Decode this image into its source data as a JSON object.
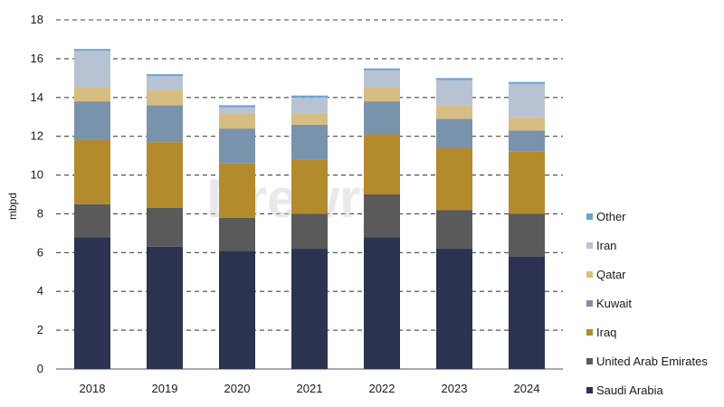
{
  "watermark": "Drewry",
  "chart_data": {
    "type": "bar",
    "stacked": true,
    "title": "",
    "xlabel": "",
    "ylabel": "mbpd",
    "ylim": [
      0,
      18
    ],
    "yticks": [
      0,
      2,
      4,
      6,
      8,
      10,
      12,
      14,
      16,
      18
    ],
    "grid": "dashed horizontal",
    "legend": "right",
    "categories": [
      "2018",
      "2019",
      "2020",
      "2021",
      "2022",
      "2023",
      "2024"
    ],
    "series": [
      {
        "name": "Saudi Arabia",
        "color": "#2b3351",
        "values": [
          6.8,
          6.3,
          6.1,
          6.2,
          6.8,
          6.2,
          5.8
        ]
      },
      {
        "name": "United Arab Emirates",
        "color": "#5a5a5a",
        "values": [
          1.7,
          2.0,
          1.7,
          1.8,
          2.2,
          2.0,
          2.2
        ]
      },
      {
        "name": "Iraq",
        "color": "#b38a2c",
        "values": [
          3.3,
          3.4,
          2.8,
          2.8,
          3.1,
          3.2,
          3.2
        ]
      },
      {
        "name": "Kuwait",
        "color": "#7a93ad",
        "values": [
          2.0,
          1.9,
          1.8,
          1.8,
          1.7,
          1.5,
          1.1
        ]
      },
      {
        "name": "Qatar",
        "color": "#d8bd83",
        "values": [
          0.7,
          0.8,
          0.8,
          0.6,
          0.7,
          0.7,
          0.7
        ]
      },
      {
        "name": "Iran",
        "color": "#b7c3d3",
        "values": [
          1.9,
          0.7,
          0.3,
          0.8,
          0.9,
          1.3,
          1.7
        ]
      },
      {
        "name": "Other",
        "color": "#6aa3d6",
        "values": [
          0.1,
          0.1,
          0.1,
          0.1,
          0.1,
          0.1,
          0.1
        ]
      }
    ]
  }
}
